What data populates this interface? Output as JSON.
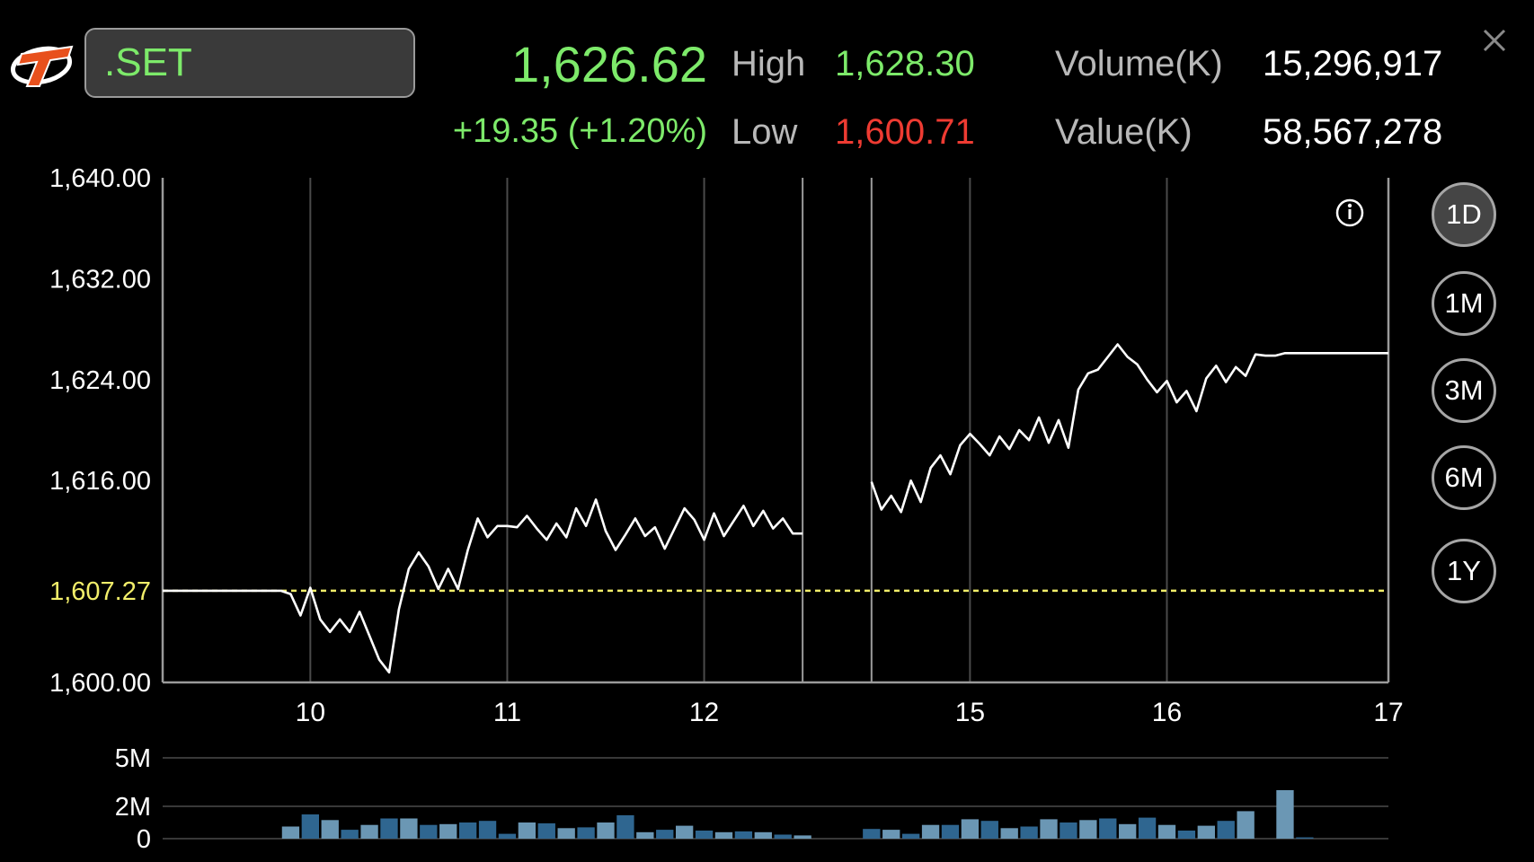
{
  "header": {
    "symbol": ".SET",
    "last_price": "1,626.62",
    "change": "+19.35 (+1.20%)",
    "high_label": "High",
    "high_value": "1,628.30",
    "low_label": "Low",
    "low_value": "1,600.71",
    "volume_label": "Volume(K)",
    "volume_value": "15,296,917",
    "value_label": "Value(K)",
    "value_value": "58,567,278"
  },
  "icons": {
    "logo": "brand-logo-icon",
    "close": "close-icon",
    "info": "info-icon"
  },
  "periods": [
    {
      "label": "1D",
      "active": true
    },
    {
      "label": "1M",
      "active": false
    },
    {
      "label": "3M",
      "active": false
    },
    {
      "label": "6M",
      "active": false
    },
    {
      "label": "1Y",
      "active": false
    }
  ],
  "colors": {
    "up": "#7dea6a",
    "down": "#ee3b32",
    "reference": "#f2ee6a",
    "line": "#ffffff",
    "volume_dark": "#2f6690",
    "volume_light": "#6b97b4"
  },
  "chart_data": [
    {
      "type": "line",
      "title": "",
      "ylim": [
        1600.0,
        1640.0
      ],
      "y_ticks": [
        "1,640.00",
        "1,632.00",
        "1,624.00",
        "1,616.00",
        "1,600.00"
      ],
      "y_tick_values": [
        1640,
        1632,
        1624,
        1616,
        1600
      ],
      "reference_line": {
        "label": "1,607.27",
        "value": 1607.27
      },
      "x_ticks": [
        {
          "label": "10",
          "x": 5.5
        },
        {
          "label": "11",
          "x": 25.5
        },
        {
          "label": "12",
          "x": 45.5
        },
        {
          "label": "15",
          "x": 72.5
        },
        {
          "label": "16",
          "x": 92.5
        },
        {
          "label": "17",
          "x": 115
        }
      ],
      "xlim": [
        -9.5,
        115
      ],
      "session_breaks": [
        55.5,
        62.5
      ],
      "grid": true,
      "segments": [
        [
          [
            -9.5,
            1607.27
          ],
          [
            2.5,
            1607.27
          ],
          [
            3.5,
            1607.0
          ],
          [
            4.5,
            1605.3
          ],
          [
            5.5,
            1607.5
          ],
          [
            6.5,
            1605.0
          ],
          [
            7.5,
            1604.0
          ],
          [
            8.5,
            1605.0
          ],
          [
            9.5,
            1604.0
          ],
          [
            10.5,
            1605.6
          ],
          [
            11.5,
            1603.7
          ],
          [
            12.5,
            1601.8
          ],
          [
            13.5,
            1600.8
          ],
          [
            14.5,
            1605.8
          ],
          [
            15.5,
            1609.0
          ],
          [
            16.5,
            1610.3
          ],
          [
            17.5,
            1609.2
          ],
          [
            18.5,
            1607.4
          ],
          [
            19.5,
            1609.0
          ],
          [
            20.5,
            1607.4
          ],
          [
            21.5,
            1610.5
          ],
          [
            22.5,
            1613.0
          ],
          [
            23.5,
            1611.5
          ],
          [
            24.5,
            1612.4
          ],
          [
            25.5,
            1612.4
          ],
          [
            26.5,
            1612.3
          ],
          [
            27.5,
            1613.2
          ],
          [
            28.5,
            1612.2
          ],
          [
            29.5,
            1611.3
          ],
          [
            30.5,
            1612.6
          ],
          [
            31.5,
            1611.5
          ],
          [
            32.5,
            1613.8
          ],
          [
            33.5,
            1612.4
          ],
          [
            34.5,
            1614.5
          ],
          [
            35.5,
            1612.0
          ],
          [
            36.5,
            1610.5
          ],
          [
            37.5,
            1611.7
          ],
          [
            38.5,
            1613.0
          ],
          [
            39.5,
            1611.6
          ],
          [
            40.5,
            1612.3
          ],
          [
            41.5,
            1610.6
          ],
          [
            42.5,
            1612.2
          ],
          [
            43.5,
            1613.8
          ],
          [
            44.5,
            1612.9
          ],
          [
            45.5,
            1611.3
          ],
          [
            46.5,
            1613.4
          ],
          [
            47.5,
            1611.6
          ],
          [
            48.5,
            1612.8
          ],
          [
            49.5,
            1614.0
          ],
          [
            50.5,
            1612.4
          ],
          [
            51.5,
            1613.6
          ],
          [
            52.5,
            1612.2
          ],
          [
            53.5,
            1613.0
          ],
          [
            54.5,
            1611.8
          ],
          [
            55.5,
            1611.8
          ]
        ],
        [
          [
            62.5,
            1615.9
          ],
          [
            63.5,
            1613.7
          ],
          [
            64.5,
            1614.8
          ],
          [
            65.5,
            1613.5
          ],
          [
            66.5,
            1616.0
          ],
          [
            67.5,
            1614.3
          ],
          [
            68.5,
            1617.0
          ],
          [
            69.5,
            1618.0
          ],
          [
            70.5,
            1616.5
          ],
          [
            71.5,
            1618.8
          ],
          [
            72.5,
            1619.7
          ],
          [
            73.5,
            1618.9
          ],
          [
            74.5,
            1618.0
          ],
          [
            75.5,
            1619.5
          ],
          [
            76.5,
            1618.5
          ],
          [
            77.5,
            1620.0
          ],
          [
            78.5,
            1619.2
          ],
          [
            79.5,
            1621.0
          ],
          [
            80.5,
            1619.0
          ],
          [
            81.5,
            1620.8
          ],
          [
            82.5,
            1618.6
          ],
          [
            83.5,
            1623.2
          ],
          [
            84.5,
            1624.5
          ],
          [
            85.5,
            1624.8
          ],
          [
            86.5,
            1625.8
          ],
          [
            87.5,
            1626.8
          ],
          [
            88.5,
            1625.8
          ],
          [
            89.5,
            1625.2
          ],
          [
            90.5,
            1624.0
          ],
          [
            91.5,
            1623.0
          ],
          [
            92.5,
            1623.9
          ],
          [
            93.5,
            1622.2
          ],
          [
            94.5,
            1623.1
          ],
          [
            95.5,
            1621.5
          ],
          [
            96.5,
            1624.1
          ],
          [
            97.5,
            1625.1
          ],
          [
            98.5,
            1623.8
          ],
          [
            99.5,
            1625.0
          ],
          [
            100.5,
            1624.3
          ],
          [
            101.5,
            1626.0
          ],
          [
            102.5,
            1625.9
          ],
          [
            103.5,
            1625.9
          ],
          [
            104.5,
            1626.1
          ],
          [
            115,
            1626.1
          ]
        ]
      ]
    },
    {
      "type": "bar",
      "title": "",
      "ylim": [
        0,
        5
      ],
      "y_ticks": [
        "5M",
        "2M",
        "0"
      ],
      "y_tick_values": [
        5,
        2,
        0
      ],
      "x_ticks": [
        {
          "label": "10",
          "x": 5.5
        },
        {
          "label": "11",
          "x": 25.5
        },
        {
          "label": "12",
          "x": 45.5
        },
        {
          "label": "15",
          "x": 72.5
        },
        {
          "label": "16",
          "x": 92.5
        },
        {
          "label": "17",
          "x": 115
        }
      ],
      "xlim": [
        -9.5,
        115
      ],
      "units": "M",
      "grid": true,
      "bars": [
        [
          3.5,
          0.75,
          "light"
        ],
        [
          5.5,
          1.5,
          "dark"
        ],
        [
          7.5,
          1.15,
          "light"
        ],
        [
          9.5,
          0.55,
          "dark"
        ],
        [
          11.5,
          0.85,
          "light"
        ],
        [
          13.5,
          1.25,
          "dark"
        ],
        [
          15.5,
          1.25,
          "light"
        ],
        [
          17.5,
          0.85,
          "dark"
        ],
        [
          19.5,
          0.9,
          "light"
        ],
        [
          21.5,
          1.0,
          "dark"
        ],
        [
          23.5,
          1.1,
          "dark"
        ],
        [
          25.5,
          0.3,
          "dark"
        ],
        [
          27.5,
          1.0,
          "light"
        ],
        [
          29.5,
          0.95,
          "dark"
        ],
        [
          31.5,
          0.65,
          "light"
        ],
        [
          33.5,
          0.7,
          "dark"
        ],
        [
          35.5,
          1.0,
          "light"
        ],
        [
          37.5,
          1.45,
          "dark"
        ],
        [
          39.5,
          0.4,
          "light"
        ],
        [
          41.5,
          0.55,
          "dark"
        ],
        [
          43.5,
          0.8,
          "light"
        ],
        [
          45.5,
          0.5,
          "dark"
        ],
        [
          47.5,
          0.4,
          "light"
        ],
        [
          49.5,
          0.45,
          "dark"
        ],
        [
          51.5,
          0.4,
          "light"
        ],
        [
          53.5,
          0.25,
          "dark"
        ],
        [
          55.5,
          0.2,
          "light"
        ],
        [
          62.5,
          0.6,
          "dark"
        ],
        [
          64.5,
          0.55,
          "light"
        ],
        [
          66.5,
          0.3,
          "dark"
        ],
        [
          68.5,
          0.85,
          "light"
        ],
        [
          70.5,
          0.85,
          "dark"
        ],
        [
          72.5,
          1.2,
          "light"
        ],
        [
          74.5,
          1.1,
          "dark"
        ],
        [
          76.5,
          0.65,
          "light"
        ],
        [
          78.5,
          0.75,
          "dark"
        ],
        [
          80.5,
          1.2,
          "light"
        ],
        [
          82.5,
          1.0,
          "dark"
        ],
        [
          84.5,
          1.15,
          "light"
        ],
        [
          86.5,
          1.25,
          "dark"
        ],
        [
          88.5,
          0.9,
          "light"
        ],
        [
          90.5,
          1.3,
          "dark"
        ],
        [
          92.5,
          0.85,
          "light"
        ],
        [
          94.5,
          0.5,
          "dark"
        ],
        [
          96.5,
          0.8,
          "light"
        ],
        [
          98.5,
          1.1,
          "dark"
        ],
        [
          100.5,
          1.7,
          "light"
        ],
        [
          104.5,
          3.0,
          "light"
        ],
        [
          106.5,
          0.08,
          "dark"
        ]
      ]
    }
  ]
}
